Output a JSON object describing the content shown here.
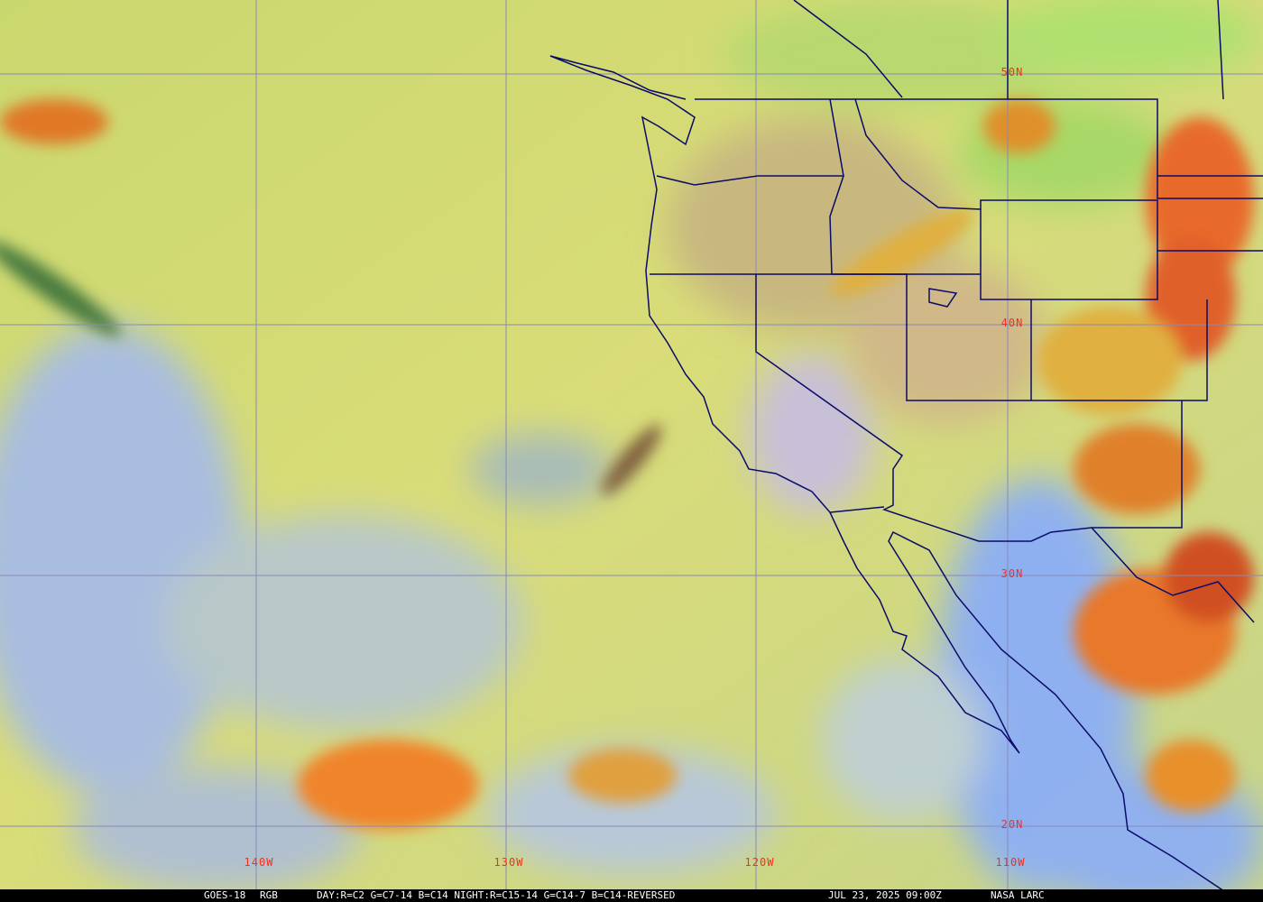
{
  "image": {
    "satellite": "GOES-18",
    "product": "RGB",
    "recipe": "DAY:R=C2 G=C7-14 B=C14 NIGHT:R=C15-14 G=C14-7 B=C14-REVERSED",
    "timestamp": "JUL 23, 2025 09:00Z",
    "credit": "NASA LARC"
  },
  "grid": {
    "latitude_labels": [
      "50N",
      "40N",
      "30N",
      "20N"
    ],
    "longitude_labels": [
      "140W",
      "130W",
      "120W",
      "110W"
    ]
  },
  "colors": {
    "label": "#ff2a1a",
    "gridline": "#8a8ab8",
    "borders": "#0a0a6a",
    "ocean_clear": "#9fb8e8",
    "low_cloud": "#d6e070",
    "high_cloud": "#e8802a"
  }
}
